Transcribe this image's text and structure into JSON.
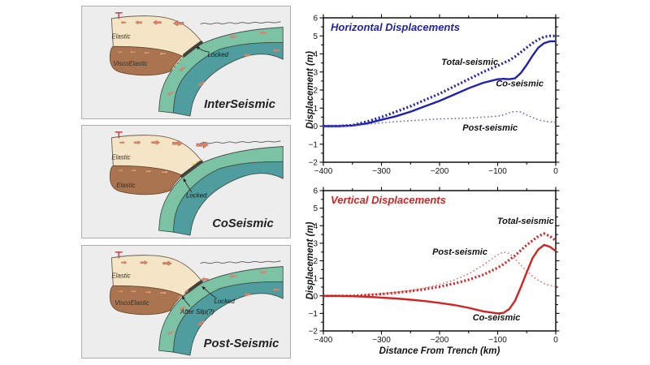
{
  "panels": [
    {
      "title": "InterSeismic",
      "crust_label": "Elastic",
      "mantle_label": "ViscoElastic",
      "locked_label": "Locked"
    },
    {
      "title": "CoSeismic",
      "crust_label": "Elastic",
      "mantle_label": "Elastic",
      "locked_label": "Locked"
    },
    {
      "title": "Post-Seismic",
      "crust_label": "Elastic",
      "mantle_label": "ViscoElastic",
      "locked_label": "Locked",
      "afterslip_label": "After Slip(?)"
    }
  ],
  "colors": {
    "horizontal_accent": "#2121b1",
    "horizontal_light": "#5a5ad8",
    "vertical_accent": "#d42222",
    "vertical_light": "#e06262",
    "crust_fill": "#f4e5c6",
    "mantle_fill": "#aa7450",
    "slab_upper_fill": "#7cc3a6",
    "slab_lower_fill": "#4f9d9e",
    "motion_arrow": "#d5846a",
    "panel_background": "#ededed"
  },
  "chart_data": [
    {
      "type": "line",
      "title": "Horizontal Displacements",
      "xlabel": "",
      "ylabel": "Displacement (m)",
      "xlim": [
        -400,
        0
      ],
      "ylim": [
        -2,
        6
      ],
      "x_ticks": [
        -400,
        -300,
        -200,
        -100,
        0
      ],
      "y_ticks": [
        -2,
        -1,
        0,
        1,
        2,
        3,
        4,
        5,
        6
      ],
      "grid": false,
      "color": "#2121b1",
      "light_color": "#5a5ad8",
      "x": [
        -400,
        -375,
        -350,
        -325,
        -300,
        -275,
        -250,
        -225,
        -200,
        -175,
        -150,
        -125,
        -100,
        -90,
        -80,
        -70,
        -60,
        -50,
        -40,
        -30,
        -20,
        -10,
        0
      ],
      "series": [
        {
          "name": "Total-seismic",
          "style": "thick-dotted",
          "values": [
            0,
            0,
            0.05,
            0.25,
            0.5,
            0.8,
            1.1,
            1.45,
            1.8,
            2.2,
            2.6,
            3.0,
            3.35,
            3.5,
            3.65,
            3.85,
            4.1,
            4.35,
            4.6,
            4.8,
            4.95,
            5.0,
            5.0
          ]
        },
        {
          "name": "Co-seismic",
          "style": "solid",
          "values": [
            0,
            0,
            0.03,
            0.15,
            0.35,
            0.55,
            0.8,
            1.1,
            1.4,
            1.75,
            2.1,
            2.4,
            2.6,
            2.62,
            2.6,
            2.65,
            2.95,
            3.4,
            3.9,
            4.35,
            4.6,
            4.7,
            4.7
          ]
        },
        {
          "name": "Post-seismic",
          "style": "dotted",
          "values": [
            0,
            0,
            0.02,
            0.1,
            0.18,
            0.25,
            0.3,
            0.35,
            0.4,
            0.42,
            0.45,
            0.5,
            0.55,
            0.62,
            0.75,
            0.82,
            0.78,
            0.62,
            0.47,
            0.35,
            0.28,
            0.24,
            0.22
          ]
        }
      ],
      "annotations": [
        {
          "text": "Total-seismic",
          "x": -148,
          "y": 3.4
        },
        {
          "text": "Co-seismic",
          "x": -62,
          "y": 2.2
        },
        {
          "text": "Post-seismic",
          "x": -113,
          "y": -0.25
        }
      ]
    },
    {
      "type": "line",
      "title": "Vertical Displacements",
      "xlabel": "Distance From Trench (km)",
      "ylabel": "Displacement (m)",
      "xlim": [
        -400,
        0
      ],
      "ylim": [
        -2,
        6
      ],
      "x_ticks": [
        -400,
        -300,
        -200,
        -100,
        0
      ],
      "y_ticks": [
        -2,
        -1,
        0,
        1,
        2,
        3,
        4,
        5,
        6
      ],
      "grid": false,
      "color": "#d42222",
      "light_color": "#e06262",
      "x": [
        -400,
        -375,
        -350,
        -325,
        -300,
        -275,
        -250,
        -225,
        -200,
        -175,
        -150,
        -125,
        -100,
        -90,
        -80,
        -70,
        -60,
        -50,
        -40,
        -30,
        -20,
        -10,
        0
      ],
      "series": [
        {
          "name": "Total-seismic",
          "style": "thick-dotted",
          "values": [
            0,
            0,
            0,
            0.05,
            0.1,
            0.18,
            0.27,
            0.38,
            0.52,
            0.7,
            0.92,
            1.2,
            1.6,
            1.8,
            2.05,
            2.3,
            2.6,
            2.9,
            3.15,
            3.4,
            3.55,
            3.4,
            3.15
          ]
        },
        {
          "name": "Post-seismic",
          "style": "dotted",
          "values": [
            0,
            0,
            0,
            0.05,
            0.12,
            0.2,
            0.3,
            0.45,
            0.65,
            0.9,
            1.25,
            1.75,
            2.35,
            2.5,
            2.42,
            2.1,
            1.75,
            1.42,
            1.12,
            0.88,
            0.7,
            0.6,
            0.55
          ]
        },
        {
          "name": "Co-seismic",
          "style": "solid",
          "values": [
            0,
            0,
            -0.02,
            -0.05,
            -0.1,
            -0.15,
            -0.22,
            -0.3,
            -0.4,
            -0.52,
            -0.68,
            -0.88,
            -1.0,
            -0.97,
            -0.75,
            -0.28,
            0.5,
            1.35,
            2.15,
            2.65,
            2.9,
            2.8,
            2.55
          ]
        }
      ],
      "annotations": [
        {
          "text": "Total-seismic",
          "x": -52,
          "y": 4.1
        },
        {
          "text": "Post-seismic",
          "x": -165,
          "y": 2.35
        },
        {
          "text": "Co-seismic",
          "x": -102,
          "y": -1.4
        }
      ]
    }
  ]
}
